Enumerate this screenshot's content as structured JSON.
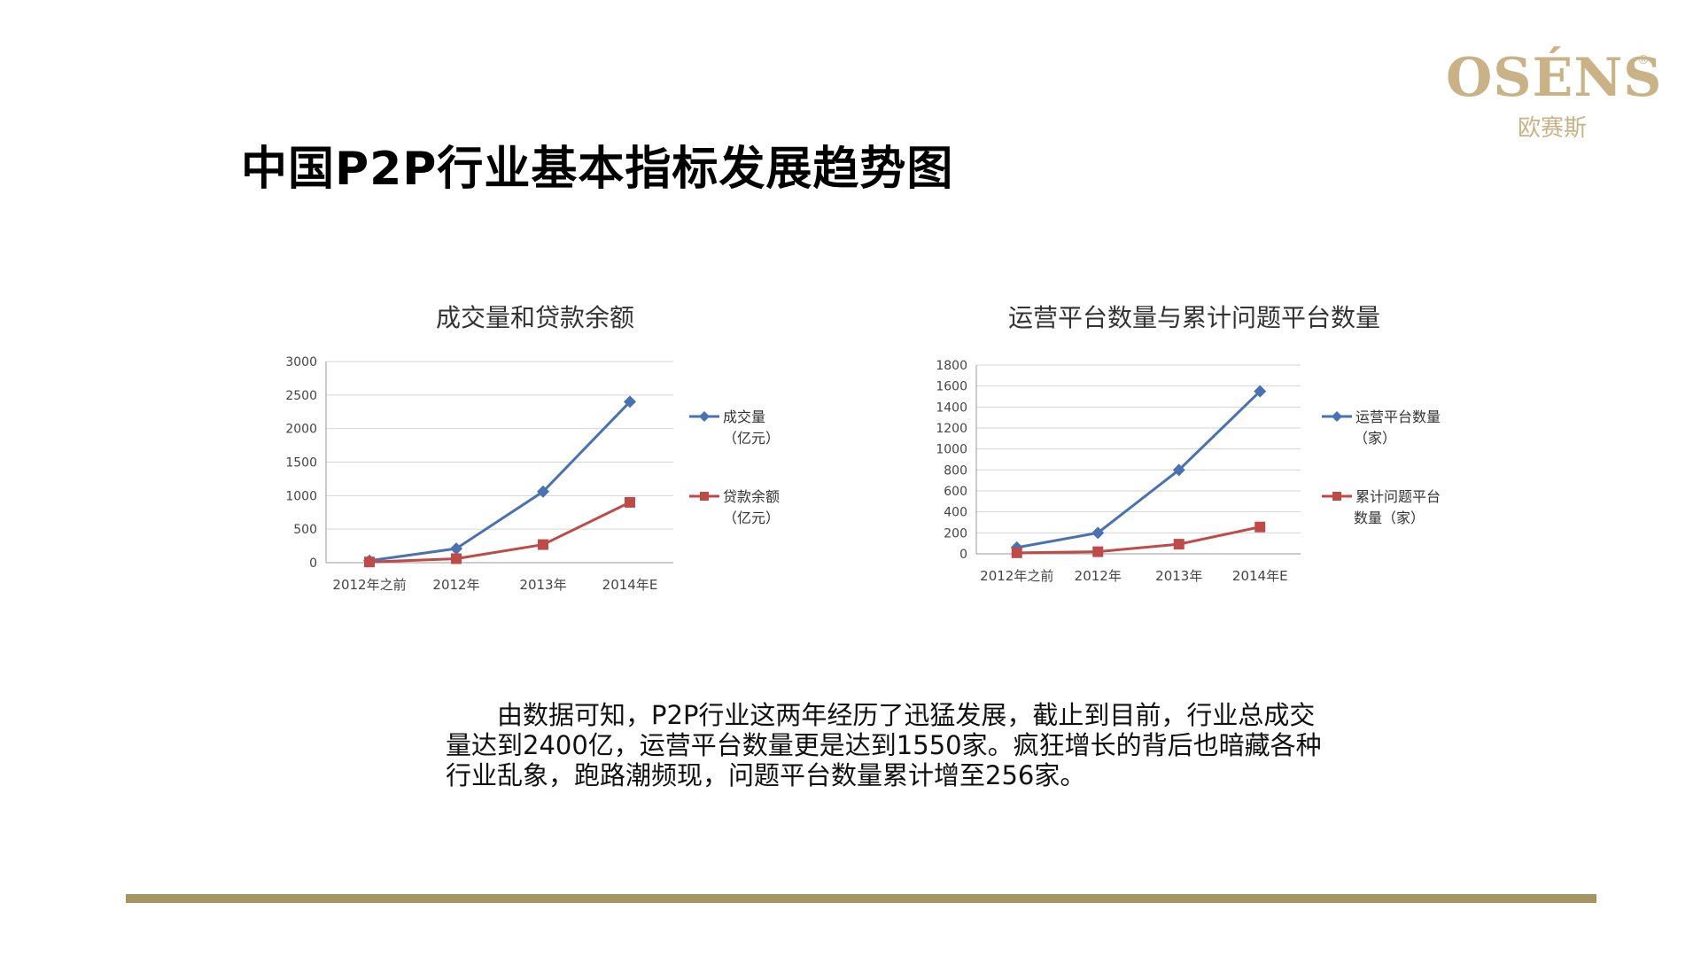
{
  "logo": {
    "text": "OSÉNS",
    "reg": "®",
    "sub": "欧赛斯"
  },
  "slide_title": "中国P2P行业基本指标发展趋势图",
  "paragraph": "由数据可知，P2P行业这两年经历了迅猛发展，截止到目前，行业总成交量达到2400亿，运营平台数量更是达到1550家。疯狂增长的背后也暗藏各种行业乱象，跑路潮频现，问题平台数量累计增至256家。",
  "colors": {
    "series_blue": "#4a72b0",
    "series_red": "#be4b48",
    "bar": "#a89462",
    "logo": "#c9b286"
  },
  "chart_data": [
    {
      "type": "line",
      "title": "成交量和贷款余额",
      "categories": [
        "2012年之前",
        "2012年",
        "2013年",
        "2014年E"
      ],
      "ylim": [
        0,
        3000
      ],
      "yticks": [
        0,
        500,
        1000,
        1500,
        2000,
        2500,
        3000
      ],
      "grid": true,
      "legend": "right",
      "series": [
        {
          "name": [
            "成交量",
            "（亿元）"
          ],
          "values": [
            30,
            210,
            1060,
            2400
          ],
          "color": "#4a72b0",
          "marker": "diamond"
        },
        {
          "name": [
            "贷款余额",
            "（亿元）"
          ],
          "values": [
            10,
            60,
            270,
            900
          ],
          "color": "#be4b48",
          "marker": "square"
        }
      ]
    },
    {
      "type": "line",
      "title": "运营平台数量与累计问题平台数量",
      "categories": [
        "2012年之前",
        "2012年",
        "2013年",
        "2014年E"
      ],
      "ylim": [
        0,
        1800
      ],
      "yticks": [
        0,
        200,
        400,
        600,
        800,
        1000,
        1200,
        1400,
        1600,
        1800
      ],
      "grid": true,
      "legend": "right",
      "series": [
        {
          "name": [
            "运营平台数量",
            "（家）"
          ],
          "values": [
            60,
            200,
            800,
            1550
          ],
          "color": "#4a72b0",
          "marker": "diamond"
        },
        {
          "name": [
            "累计问题平台",
            "数量（家）"
          ],
          "values": [
            10,
            20,
            92,
            256
          ],
          "color": "#be4b48",
          "marker": "square"
        }
      ]
    }
  ]
}
